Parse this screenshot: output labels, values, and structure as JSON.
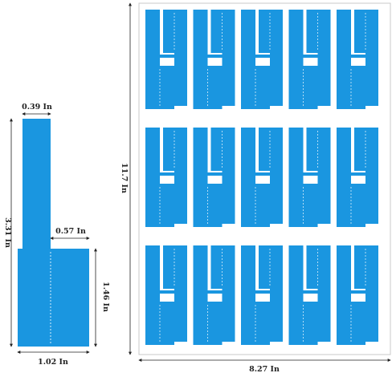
{
  "colors": {
    "label_fill": "#1a96e0",
    "sheet_border": "#c8c8c8",
    "sheet_fill": "#ffffff",
    "dim_line": "#222222",
    "perforation": "#d8eefb"
  },
  "single_label": {
    "dims": {
      "total_height": "3.31 In",
      "flag_width": "0.39 In",
      "tab_width": "0.57 In",
      "body_height": "1.46 In",
      "body_width": "1.02 In"
    }
  },
  "sheet": {
    "width_label": "8.27 In",
    "height_label": "11.7 In",
    "rows": 3,
    "columns": 5
  }
}
